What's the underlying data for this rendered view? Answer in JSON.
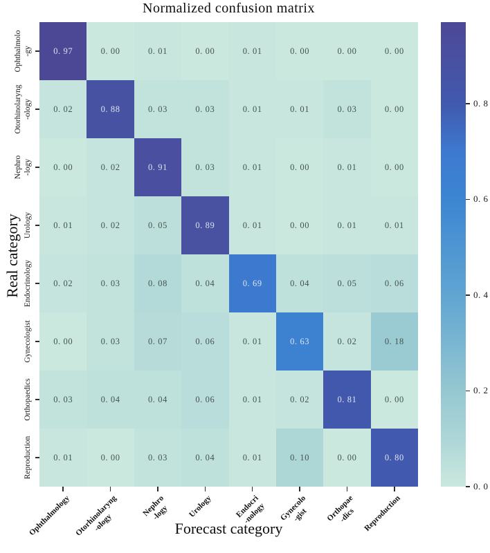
{
  "figure": {
    "title": "Normalized confusion matrix",
    "xlabel": "Forecast category",
    "ylabel": "Real category"
  },
  "chart_data": {
    "type": "heatmap",
    "title": "Normalized confusion matrix",
    "xlabel": "Forecast category",
    "ylabel": "Real category",
    "x_categories": [
      "Ophthalmology",
      "Otorhinolaryng\n-ology",
      "Nephro\n-logy",
      "Urology",
      "Endocri\n-nology",
      "Gynecolo\n-gist",
      "Orthopae\n-dics",
      "Reproduction"
    ],
    "y_categories": [
      "Ophthalmolo\n-gy",
      "Otorhinolaryng\n-ology",
      "Nephro\n-logy",
      "Urology",
      "Endocrinology",
      "Gynecologist",
      "Orthopaedics",
      "Reproduction"
    ],
    "matrix": [
      [
        0.97,
        0.0,
        0.01,
        0.0,
        0.01,
        0.0,
        0.0,
        0.0
      ],
      [
        0.02,
        0.88,
        0.03,
        0.03,
        0.01,
        0.01,
        0.03,
        0.0
      ],
      [
        0.0,
        0.02,
        0.91,
        0.03,
        0.01,
        0.0,
        0.01,
        0.0
      ],
      [
        0.01,
        0.02,
        0.05,
        0.89,
        0.01,
        0.0,
        0.01,
        0.01
      ],
      [
        0.02,
        0.03,
        0.08,
        0.04,
        0.69,
        0.04,
        0.05,
        0.06
      ],
      [
        0.0,
        0.03,
        0.07,
        0.06,
        0.01,
        0.63,
        0.02,
        0.18
      ],
      [
        0.03,
        0.04,
        0.04,
        0.06,
        0.01,
        0.02,
        0.81,
        0.0
      ],
      [
        0.01,
        0.0,
        0.03,
        0.04,
        0.01,
        0.1,
        0.0,
        0.8
      ]
    ],
    "vmin": 0.0,
    "vmax": 0.97,
    "colorbar_ticks": [
      0.8,
      0.6,
      0.4,
      0.2,
      0.0
    ],
    "colormap_stops": [
      {
        "v": 0.0,
        "color": "#cbe8de"
      },
      {
        "v": 0.1,
        "color": "#add6d7"
      },
      {
        "v": 0.2,
        "color": "#95c7d1"
      },
      {
        "v": 0.4,
        "color": "#60a5d2"
      },
      {
        "v": 0.6,
        "color": "#3c86d2"
      },
      {
        "v": 0.7,
        "color": "#3d79cf"
      },
      {
        "v": 0.8,
        "color": "#4159ae"
      },
      {
        "v": 0.9,
        "color": "#4a50a0"
      },
      {
        "v": 0.97,
        "color": "#4c4896"
      }
    ],
    "value_text_dark": "#45544e",
    "value_text_light": "#dce3f2",
    "colorbar_position": "right",
    "grid": false
  }
}
